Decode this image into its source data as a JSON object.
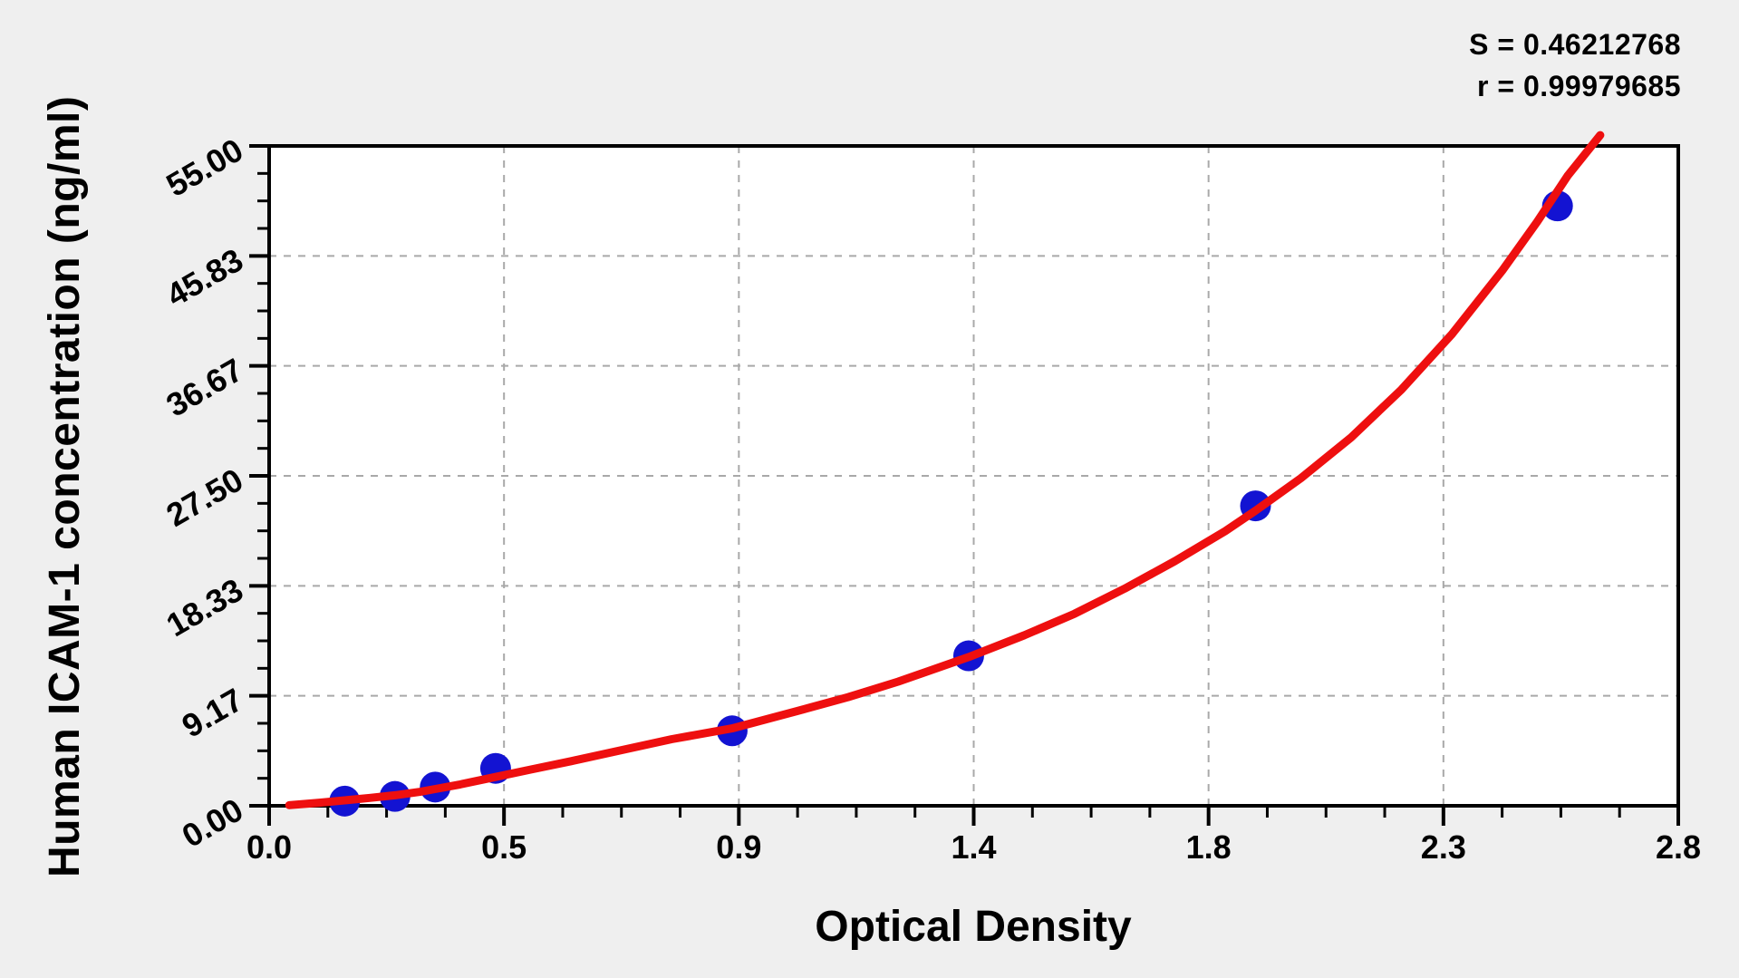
{
  "page": {
    "background_color": "#efefef",
    "plot_background_color": "#ffffff"
  },
  "chart_data": {
    "type": "scatter",
    "title": "",
    "xlabel": "Optical Density",
    "ylabel": "Human ICAM-1 concentration (ng/ml)",
    "annotations": {
      "s_line": "S = 0.46212768",
      "r_line": "r = 0.99979685"
    },
    "x_axis": {
      "min": 0.0,
      "max": 2.8,
      "tick_labels": [
        "0.0",
        "0.5",
        "0.9",
        "1.4",
        "1.8",
        "2.3",
        "2.8"
      ],
      "minor_divisions_per_major": 4
    },
    "y_axis": {
      "min": 0.0,
      "max": 55.0,
      "tick_labels": [
        "0.00",
        "9.17",
        "18.33",
        "27.50",
        "36.67",
        "45.83",
        "55.00"
      ],
      "minor_divisions_per_major": 4
    },
    "grid": {
      "style": "dashed",
      "on_major_ticks": true
    },
    "legend": "none",
    "series": [
      {
        "name": "standard-points",
        "type": "scatter",
        "color": "#1313d2",
        "points": [
          [
            0.15,
            0.39
          ],
          [
            0.25,
            0.78
          ],
          [
            0.33,
            1.56
          ],
          [
            0.45,
            3.12
          ],
          [
            0.92,
            6.25
          ],
          [
            1.39,
            12.5
          ],
          [
            1.96,
            25.0
          ],
          [
            2.56,
            50.0
          ]
        ]
      },
      {
        "name": "fitted-curve",
        "type": "line",
        "color": "#ee0f0f",
        "points": [
          [
            0.04,
            0.05
          ],
          [
            0.1,
            0.26
          ],
          [
            0.15,
            0.45
          ],
          [
            0.2,
            0.66
          ],
          [
            0.25,
            0.88
          ],
          [
            0.3,
            1.16
          ],
          [
            0.33,
            1.4
          ],
          [
            0.38,
            1.78
          ],
          [
            0.45,
            2.4
          ],
          [
            0.52,
            3.02
          ],
          [
            0.6,
            3.72
          ],
          [
            0.7,
            4.64
          ],
          [
            0.8,
            5.55
          ],
          [
            0.92,
            6.45
          ],
          [
            1.05,
            7.9
          ],
          [
            1.15,
            9.05
          ],
          [
            1.25,
            10.35
          ],
          [
            1.39,
            12.4
          ],
          [
            1.5,
            14.2
          ],
          [
            1.6,
            16.0
          ],
          [
            1.7,
            18.1
          ],
          [
            1.8,
            20.4
          ],
          [
            1.9,
            22.9
          ],
          [
            1.96,
            24.6
          ],
          [
            2.05,
            27.3
          ],
          [
            2.15,
            30.7
          ],
          [
            2.25,
            34.7
          ],
          [
            2.35,
            39.3
          ],
          [
            2.45,
            44.6
          ],
          [
            2.52,
            48.7
          ],
          [
            2.58,
            52.5
          ],
          [
            2.645,
            55.9
          ]
        ]
      }
    ],
    "colors": {
      "point": "#1313d2",
      "curve": "#ee0f0f",
      "grid": "#a9a9a9",
      "frame": "#000000",
      "tick": "#000000"
    }
  }
}
